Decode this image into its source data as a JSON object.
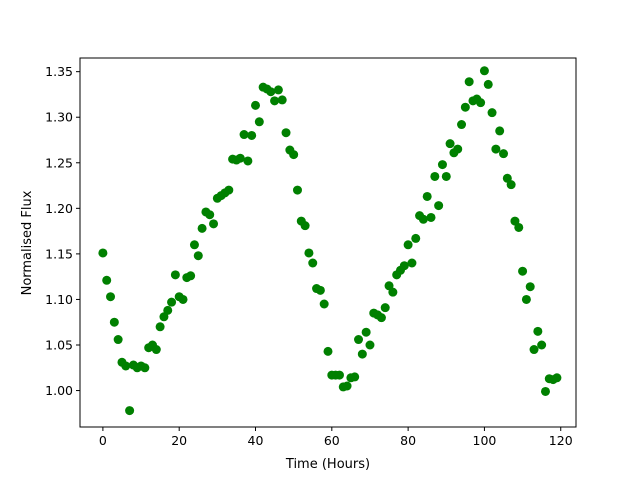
{
  "chart_data": {
    "type": "scatter",
    "title": "",
    "xlabel": "Time (Hours)",
    "ylabel": "Normalised Flux",
    "xlim": [
      -6,
      124
    ],
    "ylim": [
      0.96,
      1.365
    ],
    "xticks": [
      0,
      20,
      40,
      60,
      80,
      100,
      120
    ],
    "xtick_labels": [
      "0",
      "20",
      "40",
      "60",
      "80",
      "100",
      "120"
    ],
    "yticks": [
      1.0,
      1.05,
      1.1,
      1.15,
      1.2,
      1.25,
      1.3,
      1.35
    ],
    "ytick_labels": [
      "1.00",
      "1.05",
      "1.10",
      "1.15",
      "1.20",
      "1.25",
      "1.30",
      "1.35"
    ],
    "grid": false,
    "legend": "none",
    "marker_color": "#008000",
    "series": [
      {
        "x": [
          0,
          1,
          2,
          3,
          4,
          5,
          6,
          7,
          8,
          9,
          10,
          11,
          12,
          13,
          14,
          15,
          16,
          17,
          18,
          19,
          20,
          21,
          22,
          23,
          24,
          25,
          26,
          27,
          28,
          29,
          30,
          31,
          32,
          33,
          34,
          35,
          36,
          37,
          38,
          39,
          40,
          41,
          42,
          43,
          44,
          45,
          46,
          47,
          48,
          49,
          50,
          51,
          52,
          53,
          54,
          55,
          56,
          57,
          58,
          59,
          60,
          61,
          62,
          63,
          64,
          65,
          66,
          67,
          68,
          69,
          70,
          71,
          72,
          73,
          74,
          75,
          76,
          77,
          78,
          79,
          80,
          81,
          82,
          83,
          84,
          85,
          86,
          87,
          88,
          89,
          90,
          91,
          92,
          93,
          94,
          95,
          96,
          97,
          98,
          99,
          100,
          101,
          102,
          103,
          104,
          105,
          106,
          107,
          108,
          109,
          110,
          111,
          112,
          113,
          114,
          115,
          116,
          117,
          118,
          119
        ],
        "y": [
          1.151,
          1.121,
          1.103,
          1.075,
          1.056,
          1.031,
          1.027,
          0.978,
          1.028,
          1.025,
          1.027,
          1.025,
          1.047,
          1.05,
          1.045,
          1.07,
          1.081,
          1.088,
          1.097,
          1.127,
          1.103,
          1.1,
          1.124,
          1.126,
          1.16,
          1.148,
          1.178,
          1.196,
          1.193,
          1.183,
          1.211,
          1.214,
          1.217,
          1.22,
          1.254,
          1.253,
          1.255,
          1.281,
          1.252,
          1.28,
          1.313,
          1.295,
          1.333,
          1.331,
          1.328,
          1.318,
          1.33,
          1.319,
          1.283,
          1.264,
          1.259,
          1.22,
          1.186,
          1.181,
          1.151,
          1.14,
          1.112,
          1.11,
          1.095,
          1.043,
          1.017,
          1.017,
          1.017,
          1.004,
          1.005,
          1.014,
          1.015,
          1.056,
          1.04,
          1.064,
          1.05,
          1.085,
          1.083,
          1.08,
          1.091,
          1.115,
          1.108,
          1.127,
          1.132,
          1.137,
          1.16,
          1.14,
          1.167,
          1.192,
          1.188,
          1.213,
          1.19,
          1.235,
          1.203,
          1.248,
          1.235,
          1.271,
          1.261,
          1.265,
          1.292,
          1.311,
          1.339,
          1.318,
          1.32,
          1.316,
          1.351,
          1.336,
          1.305,
          1.265,
          1.285,
          1.26,
          1.233,
          1.226,
          1.186,
          1.179,
          1.131,
          1.1,
          1.114,
          1.045,
          1.065,
          1.05,
          0.999,
          1.013,
          1.012,
          1.014
        ]
      }
    ]
  }
}
